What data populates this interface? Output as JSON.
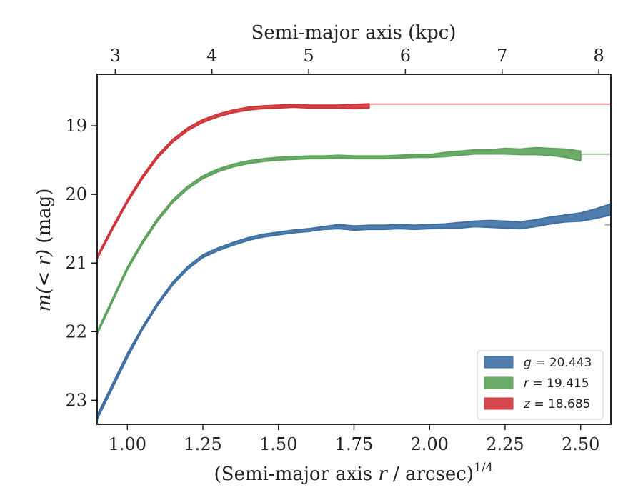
{
  "chart_data": {
    "type": "area",
    "xlabel": "(Semi-major axis r / arcsec)^{1/4}",
    "xlabel_main": "(Semi-major axis ",
    "xlabel_var": "r",
    "xlabel_tail": " / arcsec)",
    "xlabel_sup": "1/4",
    "ylabel": "m(< r) (mag)",
    "ylabel_math": "m(< r)",
    "ylabel_unit": " (mag)",
    "top_xlabel": "Semi-major axis (kpc)",
    "xlim": [
      0.9,
      2.6
    ],
    "ylim": [
      23.35,
      18.25
    ],
    "y_inverted": true,
    "xticks": [
      1.0,
      1.25,
      1.5,
      1.75,
      2.0,
      2.25,
      2.5
    ],
    "xtick_labels": [
      "1.00",
      "1.25",
      "1.50",
      "1.75",
      "2.00",
      "2.25",
      "2.50"
    ],
    "yticks": [
      19,
      20,
      21,
      22,
      23
    ],
    "ytick_labels": [
      "19",
      "20",
      "21",
      "22",
      "23"
    ],
    "top_xticks_kpc": [
      3,
      4,
      5,
      6,
      7,
      8
    ],
    "top_xtick_positions": [
      0.96,
      1.28,
      1.6,
      1.92,
      2.24,
      2.56
    ],
    "legend_position": "lower-right",
    "series": [
      {
        "name": "g = 20.443",
        "legend_var": "g",
        "legend_value": " = 20.443",
        "color": "#3d6fa3",
        "asymptote": 20.443,
        "x": [
          0.9,
          0.95,
          1.0,
          1.05,
          1.1,
          1.15,
          1.2,
          1.25,
          1.3,
          1.35,
          1.4,
          1.45,
          1.5,
          1.55,
          1.6,
          1.65,
          1.7,
          1.75,
          1.8,
          1.85,
          1.9,
          1.95,
          2.0,
          2.05,
          2.1,
          2.15,
          2.2,
          2.25,
          2.3,
          2.35,
          2.4,
          2.45,
          2.5,
          2.55,
          2.6
        ],
        "y": [
          23.25,
          22.8,
          22.35,
          21.95,
          21.6,
          21.3,
          21.07,
          20.9,
          20.8,
          20.72,
          20.65,
          20.6,
          20.57,
          20.54,
          20.52,
          20.49,
          20.47,
          20.49,
          20.48,
          20.48,
          20.47,
          20.48,
          20.47,
          20.46,
          20.45,
          20.43,
          20.43,
          20.44,
          20.45,
          20.42,
          20.38,
          20.35,
          20.33,
          20.28,
          20.22
        ],
        "err": [
          0.03,
          0.03,
          0.03,
          0.02,
          0.02,
          0.02,
          0.02,
          0.02,
          0.02,
          0.02,
          0.02,
          0.02,
          0.02,
          0.02,
          0.02,
          0.02,
          0.03,
          0.03,
          0.03,
          0.03,
          0.03,
          0.03,
          0.03,
          0.03,
          0.04,
          0.04,
          0.05,
          0.05,
          0.05,
          0.05,
          0.05,
          0.05,
          0.06,
          0.07,
          0.08
        ]
      },
      {
        "name": "r = 19.415",
        "legend_var": "r",
        "legend_value": " = 19.415",
        "color": "#5ca35a",
        "asymptote": 19.415,
        "x": [
          0.9,
          0.95,
          1.0,
          1.05,
          1.1,
          1.15,
          1.2,
          1.25,
          1.3,
          1.35,
          1.4,
          1.45,
          1.5,
          1.55,
          1.6,
          1.65,
          1.7,
          1.75,
          1.8,
          1.85,
          1.9,
          1.95,
          2.0,
          2.05,
          2.1,
          2.15,
          2.2,
          2.25,
          2.3,
          2.35,
          2.4,
          2.45,
          2.5
        ],
        "y": [
          22.02,
          21.55,
          21.08,
          20.7,
          20.37,
          20.1,
          19.9,
          19.75,
          19.65,
          19.58,
          19.53,
          19.5,
          19.48,
          19.47,
          19.46,
          19.46,
          19.45,
          19.46,
          19.46,
          19.46,
          19.45,
          19.44,
          19.44,
          19.42,
          19.4,
          19.38,
          19.38,
          19.37,
          19.38,
          19.37,
          19.38,
          19.4,
          19.44
        ],
        "err": [
          0.02,
          0.02,
          0.02,
          0.02,
          0.02,
          0.02,
          0.02,
          0.02,
          0.02,
          0.02,
          0.02,
          0.02,
          0.02,
          0.02,
          0.02,
          0.02,
          0.02,
          0.02,
          0.02,
          0.02,
          0.02,
          0.02,
          0.02,
          0.03,
          0.03,
          0.03,
          0.03,
          0.04,
          0.04,
          0.05,
          0.05,
          0.06,
          0.07
        ]
      },
      {
        "name": "z = 18.685",
        "legend_var": "z",
        "legend_value": " = 18.685",
        "color": "#d0343a",
        "asymptote": 18.685,
        "x": [
          0.9,
          0.95,
          1.0,
          1.05,
          1.1,
          1.15,
          1.2,
          1.25,
          1.3,
          1.35,
          1.4,
          1.45,
          1.5,
          1.55,
          1.6,
          1.65,
          1.7,
          1.75,
          1.8
        ],
        "y": [
          20.92,
          20.5,
          20.1,
          19.75,
          19.45,
          19.22,
          19.05,
          18.93,
          18.85,
          18.79,
          18.75,
          18.73,
          18.72,
          18.71,
          18.72,
          18.72,
          18.72,
          18.72,
          18.71
        ],
        "err": [
          0.02,
          0.02,
          0.02,
          0.02,
          0.02,
          0.02,
          0.02,
          0.02,
          0.02,
          0.02,
          0.02,
          0.02,
          0.02,
          0.02,
          0.02,
          0.02,
          0.02,
          0.03,
          0.03
        ]
      }
    ]
  }
}
